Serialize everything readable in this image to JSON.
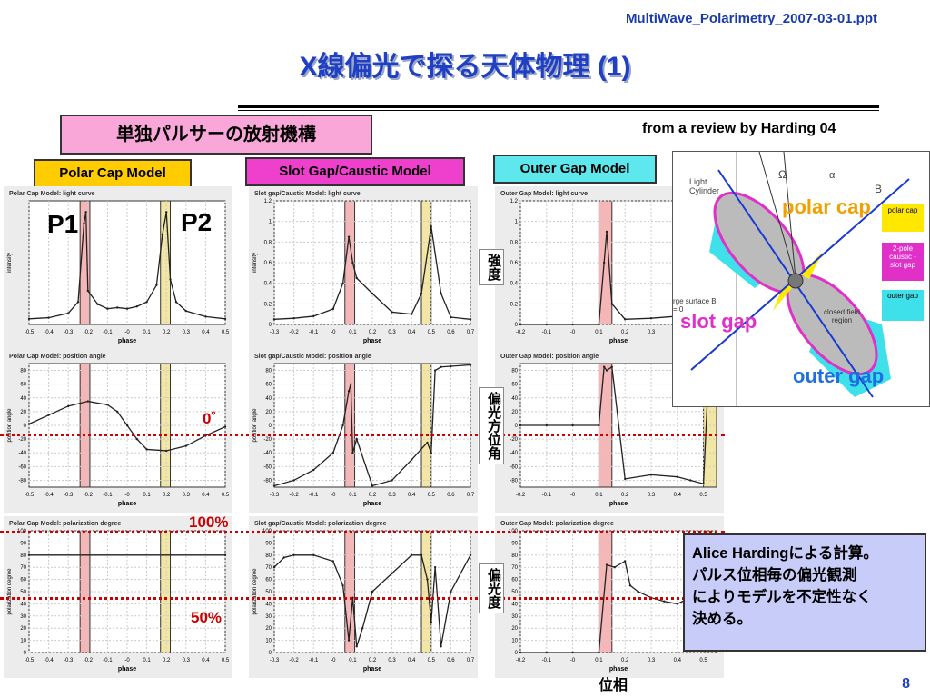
{
  "header": {
    "file_name": "MultiWave_Polarimetry_2007-03-01.ppt",
    "title": "X線偏光で探る天体物理 (1)"
  },
  "mechanism_box": "単独パルサーの放射機構",
  "review_credit": "from a review by Harding 04",
  "models": {
    "polar_cap": "Polar Cap Model",
    "slot_gap": "Slot Gap/Caustic Model",
    "outer_gap": "Outer Gap Model"
  },
  "pulse_labels": {
    "p1": "P1",
    "p2": "P2"
  },
  "row_labels": {
    "intensity": "強度",
    "position_angle": "偏光方位角",
    "polarization_degree": "偏光度",
    "phase": "位相"
  },
  "reference_lines": {
    "zero": "0˚",
    "full": "100%",
    "half": "50%"
  },
  "note": {
    "lines": [
      "Alice Hardingによる計算。",
      "パルス位相毎の偏光観測",
      "によりモデルを不定性なく",
      "決める。"
    ]
  },
  "diagram": {
    "light_cylinder": "Light Cylinder",
    "polar_cap": "polar cap",
    "slot_gap": "slot gap",
    "outer_gap": "outer gap",
    "omega": "Ω",
    "alpha": "α",
    "b_field": "B",
    "closed_field": "closed field region",
    "null_surface": "rge surface B = 0",
    "legend": [
      "polar cap",
      "2-pole caustic - slot gap",
      "outer gap"
    ]
  },
  "page_number": "8",
  "chart_data": [
    {
      "type": "line",
      "title": "Polar Cap Model: light curve",
      "xlabel": "phase",
      "ylabel": "intensity",
      "x": [
        -0.5,
        -0.4,
        -0.3,
        -0.25,
        -0.22,
        -0.21,
        -0.2,
        -0.15,
        -0.1,
        -0.05,
        0,
        0.05,
        0.1,
        0.15,
        0.18,
        0.2,
        0.22,
        0.25,
        0.3,
        0.4,
        0.5
      ],
      "y": [
        0.05,
        0.06,
        0.1,
        0.2,
        0.9,
        1.0,
        0.3,
        0.18,
        0.14,
        0.15,
        0.14,
        0.16,
        0.2,
        0.35,
        0.8,
        1.0,
        0.4,
        0.2,
        0.12,
        0.07,
        0.05
      ],
      "xlim": [
        -0.5,
        0.5
      ],
      "xticks": [
        "-0.5",
        "-0.4",
        "-0.3",
        "-0.2",
        "-0.1",
        "-0",
        "0.1",
        "0.2",
        "0.3",
        "0.4",
        "0.5"
      ]
    },
    {
      "type": "line",
      "title": "Slot gap/Caustic Model: light curve",
      "xlabel": "phase",
      "ylabel": "intensity",
      "x": [
        -0.3,
        -0.2,
        -0.1,
        0,
        0.05,
        0.08,
        0.1,
        0.12,
        0.2,
        0.3,
        0.4,
        0.45,
        0.5,
        0.55,
        0.6,
        0.7
      ],
      "y": [
        0.05,
        0.06,
        0.08,
        0.15,
        0.4,
        0.85,
        0.6,
        0.45,
        0.3,
        0.12,
        0.1,
        0.3,
        0.95,
        0.3,
        0.07,
        0.05
      ],
      "xlim": [
        -0.3,
        0.7
      ],
      "ylim": [
        0,
        1.2
      ],
      "xticks": [
        "-0.3",
        "-0.2",
        "-0.1",
        "-0",
        "0.1",
        "0.2",
        "0.3",
        "0.4",
        "0.5",
        "0.6",
        "0.7"
      ],
      "yticks": [
        "0",
        "0.2",
        "0.4",
        "0.6",
        "0.8",
        "1",
        "1.2"
      ]
    },
    {
      "type": "line",
      "title": "Outer Gap Model: light curve",
      "xlabel": "phase",
      "ylabel": "",
      "x": [
        -0.2,
        -0.1,
        0,
        0.1,
        0.12,
        0.13,
        0.15,
        0.2,
        0.3,
        0.4,
        0.45,
        0.5,
        0.52,
        0.55
      ],
      "y": [
        0,
        0,
        0,
        0,
        0.6,
        0.9,
        0.2,
        0.05,
        0.06,
        0.08,
        0.12,
        0.3,
        0.5,
        0.9
      ],
      "xlim": [
        -0.2,
        0.55
      ],
      "ylim": [
        0,
        1.2
      ],
      "xticks": [
        "-0.2",
        "-0.1",
        "-0",
        "0.1",
        "0.2",
        "0.3",
        "0.4",
        "0.5"
      ],
      "yticks": [
        "0",
        "0.2",
        "0.4",
        "0.6",
        "0.8",
        "1",
        "1.2"
      ]
    },
    {
      "type": "line",
      "title": "Polar Cap Model: position angle",
      "xlabel": "phase",
      "ylabel": "position angle",
      "x": [
        -0.5,
        -0.4,
        -0.3,
        -0.2,
        -0.1,
        -0.05,
        0,
        0.05,
        0.1,
        0.2,
        0.3,
        0.4,
        0.5
      ],
      "y": [
        2,
        15,
        28,
        35,
        30,
        20,
        0,
        -20,
        -35,
        -37,
        -30,
        -15,
        -2
      ],
      "xlim": [
        -0.5,
        0.5
      ],
      "ylim": [
        -90,
        90
      ],
      "xticks": [
        "-0.5",
        "-0.4",
        "-0.3",
        "-0.2",
        "-0.1",
        "-0",
        "0.1",
        "0.2",
        "0.3",
        "0.4",
        "0.5"
      ],
      "yticks": [
        "-80",
        "-60",
        "-40",
        "-20",
        "0",
        "20",
        "40",
        "60",
        "80"
      ]
    },
    {
      "type": "line",
      "title": "Slot gap/Caustic Model: position angle",
      "xlabel": "phase",
      "ylabel": "position angle",
      "x": [
        -0.3,
        -0.2,
        -0.1,
        0,
        0.05,
        0.08,
        0.09,
        0.1,
        0.12,
        0.2,
        0.3,
        0.4,
        0.48,
        0.5,
        0.52,
        0.55,
        0.6,
        0.7
      ],
      "y": [
        -88,
        -80,
        -65,
        -40,
        0,
        50,
        60,
        -40,
        -20,
        -88,
        -80,
        -50,
        -25,
        -40,
        80,
        85,
        86,
        88
      ],
      "xlim": [
        -0.3,
        0.7
      ],
      "ylim": [
        -90,
        90
      ],
      "xticks": [
        "-0.3",
        "-0.2",
        "-0.1",
        "-0",
        "0.1",
        "0.2",
        "0.3",
        "0.4",
        "0.5",
        "0.6",
        "0.7"
      ],
      "yticks": [
        "-80",
        "-60",
        "-40",
        "-20",
        "0",
        "20",
        "40",
        "60",
        "80"
      ]
    },
    {
      "type": "line",
      "title": "Outer Gap Model: position angle",
      "xlabel": "phase",
      "ylabel": "",
      "x": [
        -0.2,
        -0.1,
        0,
        0.1,
        0.12,
        0.13,
        0.15,
        0.2,
        0.3,
        0.4,
        0.45,
        0.5,
        0.52,
        0.55
      ],
      "y": [
        0,
        0,
        0,
        0,
        85,
        80,
        85,
        -78,
        -72,
        -75,
        -80,
        -85,
        80,
        85
      ],
      "xlim": [
        -0.2,
        0.55
      ],
      "ylim": [
        -90,
        90
      ],
      "xticks": [
        "-0.2",
        "-0.1",
        "-0",
        "0.1",
        "0.2",
        "0.3",
        "0.4",
        "0.5"
      ],
      "yticks": [
        "-80",
        "-60",
        "-40",
        "-20",
        "0",
        "20",
        "40",
        "60",
        "80"
      ]
    },
    {
      "type": "line",
      "title": "Polar Cap Model: polarization degree",
      "xlabel": "phase",
      "ylabel": "polarization degree",
      "x": [
        -0.5,
        0.5
      ],
      "y": [
        80,
        80
      ],
      "xlim": [
        -0.5,
        0.5
      ],
      "ylim": [
        0,
        100
      ],
      "xticks": [
        "-0.5",
        "-0.4",
        "-0.3",
        "-0.2",
        "-0.1",
        "-0",
        "0.1",
        "0.2",
        "0.3",
        "0.4",
        "0.5"
      ],
      "yticks": [
        "0",
        "10",
        "20",
        "30",
        "40",
        "50",
        "60",
        "70",
        "80",
        "90",
        "100"
      ]
    },
    {
      "type": "line",
      "title": "Slot gap/Caustic Model: polarization degree",
      "xlabel": "phase",
      "ylabel": "polarization degree",
      "x": [
        -0.3,
        -0.25,
        -0.2,
        -0.1,
        0,
        0.05,
        0.08,
        0.1,
        0.12,
        0.15,
        0.2,
        0.3,
        0.4,
        0.45,
        0.48,
        0.5,
        0.52,
        0.55,
        0.6,
        0.7
      ],
      "y": [
        70,
        78,
        80,
        80,
        75,
        55,
        10,
        45,
        5,
        20,
        50,
        65,
        80,
        80,
        60,
        25,
        70,
        5,
        50,
        80
      ],
      "xlim": [
        -0.3,
        0.7
      ],
      "ylim": [
        0,
        100
      ],
      "xticks": [
        "-0.3",
        "-0.2",
        "-0.1",
        "-0",
        "0.1",
        "0.2",
        "0.3",
        "0.4",
        "0.5",
        "0.6",
        "0.7"
      ],
      "yticks": [
        "0",
        "10",
        "20",
        "30",
        "40",
        "50",
        "60",
        "70",
        "80",
        "90",
        "100"
      ]
    },
    {
      "type": "line",
      "title": "Outer Gap Model: polarization degree",
      "xlabel": "phase",
      "ylabel": "",
      "x": [
        -0.2,
        -0.1,
        0,
        0.1,
        0.13,
        0.16,
        0.2,
        0.22,
        0.25,
        0.3,
        0.35,
        0.4,
        0.45,
        0.5,
        0.55
      ],
      "y": [
        0,
        0,
        0,
        0,
        72,
        70,
        75,
        55,
        50,
        45,
        42,
        40,
        45,
        55,
        60
      ],
      "xlim": [
        -0.2,
        0.55
      ],
      "ylim": [
        0,
        100
      ],
      "xticks": [
        "-0.2",
        "-0.1",
        "-0",
        "0.1",
        "0.2",
        "0.3",
        "0.4",
        "0.5"
      ],
      "yticks": [
        "0",
        "10",
        "20",
        "30",
        "40",
        "50",
        "60",
        "70",
        "80",
        "90",
        "100"
      ]
    }
  ]
}
